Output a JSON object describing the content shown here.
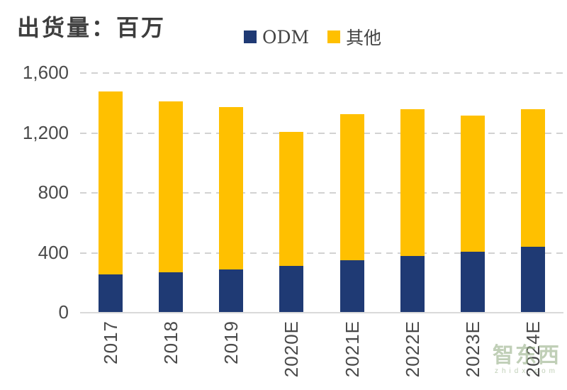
{
  "title": "出货量：百万",
  "legend": {
    "items": [
      {
        "label": "ODM",
        "color": "#1f3a74"
      },
      {
        "label": "其他",
        "color": "#ffc000"
      }
    ]
  },
  "watermark": {
    "logo": "智东西",
    "site": "zhidx.com"
  },
  "colors": {
    "odm": "#1f3a74",
    "other": "#ffc000",
    "gridline": "#d2d2d2",
    "axis_line": "#d9d9d9",
    "text": "#4a4a4a"
  },
  "chart_data": {
    "type": "bar",
    "stacked": true,
    "title": "出货量：百万",
    "categories": [
      "2017",
      "2018",
      "2019",
      "2020E",
      "2021E",
      "2022E",
      "2023E",
      "2024E"
    ],
    "series": [
      {
        "name": "ODM",
        "color": "#1f3a74",
        "values": [
          250,
          265,
          285,
          310,
          345,
          375,
          400,
          435
        ]
      },
      {
        "name": "其他",
        "color": "#ffc000",
        "values": [
          1220,
          1140,
          1085,
          895,
          975,
          980,
          910,
          920
        ]
      }
    ],
    "totals": [
      1470,
      1405,
      1370,
      1205,
      1320,
      1355,
      1310,
      1355
    ],
    "xlabel": "",
    "ylabel": "",
    "ylim": [
      0,
      1600
    ],
    "ytick_values": [
      0,
      400,
      800,
      1200,
      1600
    ],
    "ytick_labels_top_to_bottom": [
      "1,600",
      "1,200",
      "800",
      "400",
      "0"
    ],
    "grid": "horizontal-dashed",
    "legend_position": "top-center"
  }
}
